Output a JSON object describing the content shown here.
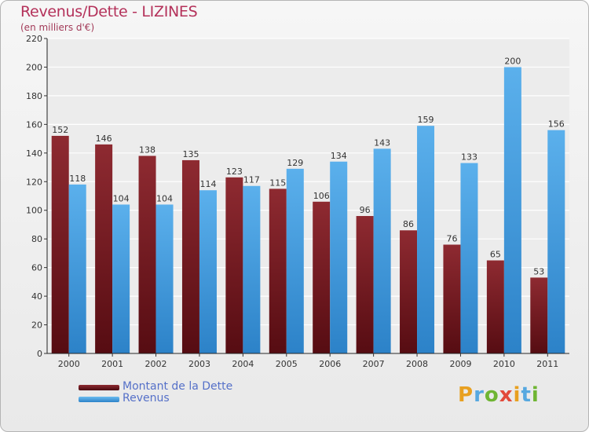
{
  "chart_data": {
    "type": "bar",
    "title": "Revenus/Dette - LIZINES",
    "subtitle": "(en milliers d'€)",
    "categories": [
      "2000",
      "2001",
      "2002",
      "2003",
      "2004",
      "2005",
      "2006",
      "2007",
      "2008",
      "2009",
      "2010",
      "2011"
    ],
    "series": [
      {
        "name": "Montant de la Dette",
        "color": "#7a1c24",
        "values": [
          152,
          146,
          138,
          135,
          123,
          115,
          106,
          96,
          86,
          76,
          65,
          53
        ]
      },
      {
        "name": "Revenus",
        "color": "#4aa3e6",
        "values": [
          118,
          104,
          104,
          114,
          117,
          129,
          134,
          143,
          159,
          133,
          200,
          156
        ]
      }
    ],
    "ylim": [
      0,
      220
    ],
    "yticks": [
      0,
      20,
      40,
      60,
      80,
      100,
      120,
      140,
      160,
      180,
      200,
      220
    ],
    "grid": true,
    "legend_position": "bottom-left"
  },
  "brand": {
    "letters": [
      "P",
      "r",
      "o",
      "x",
      "i",
      "t",
      "i"
    ],
    "colors": [
      "#e8a020",
      "#56a8e0",
      "#6fb533",
      "#e24a3b",
      "#e8a020",
      "#56a8e0",
      "#6fb533"
    ]
  }
}
